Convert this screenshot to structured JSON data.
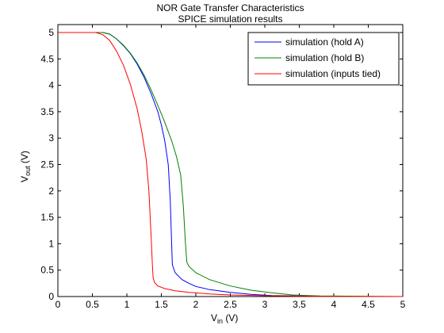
{
  "chart_data": {
    "type": "line",
    "title_line1": "NOR Gate Transfer Characteristics",
    "title_line2": "SPICE simulation results",
    "xlabel": {
      "main": "V",
      "sub": "in",
      "unit": " (V)"
    },
    "ylabel": {
      "main": "V",
      "sub": "out",
      "unit": " (V)"
    },
    "xlim": [
      0,
      5
    ],
    "ylim": [
      0,
      5.15
    ],
    "xticks": [
      "0",
      "0.5",
      "1",
      "1.5",
      "2",
      "2.5",
      "3",
      "3.5",
      "4",
      "4.5",
      "5"
    ],
    "yticks": [
      "0",
      "0.5",
      "1",
      "1.5",
      "2",
      "2.5",
      "3",
      "3.5",
      "4",
      "4.5",
      "5"
    ],
    "grid": false,
    "legend_position": "top-right",
    "series": [
      {
        "name": "simulation (hold A)",
        "color": "#0000ff",
        "x": [
          0,
          0.65,
          0.75,
          0.85,
          0.95,
          1.05,
          1.15,
          1.25,
          1.35,
          1.45,
          1.5,
          1.55,
          1.6,
          1.63,
          1.65,
          1.66,
          1.7,
          1.8,
          1.9,
          2.0,
          2.2,
          2.5,
          2.8,
          3.1,
          3.5,
          4.0,
          5.0
        ],
        "y": [
          5.0,
          5.0,
          4.97,
          4.88,
          4.75,
          4.6,
          4.4,
          4.15,
          3.85,
          3.5,
          3.25,
          2.95,
          2.5,
          1.8,
          1.0,
          0.6,
          0.45,
          0.32,
          0.25,
          0.19,
          0.13,
          0.08,
          0.04,
          0.02,
          0.01,
          0.0,
          0.0
        ]
      },
      {
        "name": "simulation (hold B)",
        "color": "#008000",
        "x": [
          0,
          0.65,
          0.75,
          0.85,
          0.95,
          1.05,
          1.15,
          1.25,
          1.35,
          1.45,
          1.55,
          1.65,
          1.72,
          1.78,
          1.82,
          1.85,
          1.87,
          1.9,
          2.0,
          2.2,
          2.5,
          2.8,
          3.1,
          3.4,
          3.8,
          5.0
        ],
        "y": [
          5.0,
          5.0,
          4.97,
          4.88,
          4.76,
          4.61,
          4.42,
          4.19,
          3.92,
          3.62,
          3.3,
          2.95,
          2.65,
          2.3,
          1.7,
          1.0,
          0.65,
          0.57,
          0.45,
          0.32,
          0.2,
          0.12,
          0.07,
          0.03,
          0.01,
          0.0
        ]
      },
      {
        "name": "simulation (inputs tied)",
        "color": "#ff0000",
        "x": [
          0,
          0.55,
          0.65,
          0.75,
          0.85,
          0.95,
          1.05,
          1.15,
          1.22,
          1.28,
          1.32,
          1.35,
          1.37,
          1.38,
          1.4,
          1.45,
          1.55,
          1.7,
          1.9,
          2.2,
          2.5,
          2.9,
          3.3,
          3.8,
          5.0
        ],
        "y": [
          5.0,
          5.0,
          4.96,
          4.85,
          4.65,
          4.38,
          4.02,
          3.55,
          3.1,
          2.6,
          2.0,
          1.2,
          0.6,
          0.36,
          0.27,
          0.2,
          0.15,
          0.11,
          0.08,
          0.05,
          0.03,
          0.02,
          0.01,
          0.0,
          0.0
        ]
      }
    ]
  }
}
